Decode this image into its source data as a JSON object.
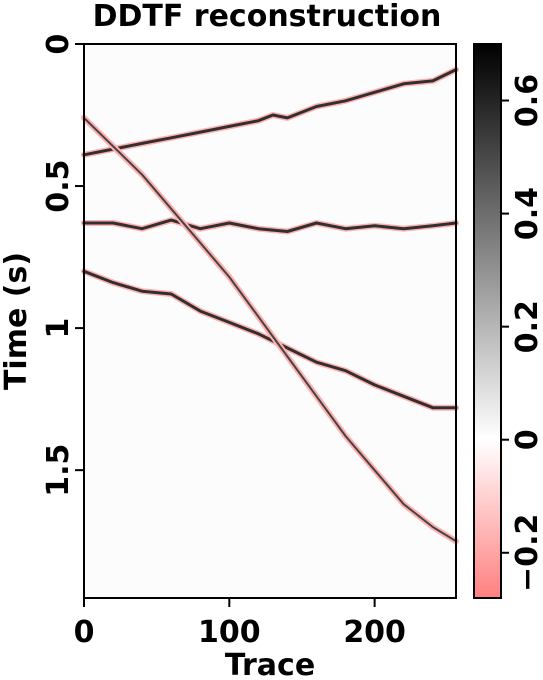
{
  "chart_data": {
    "type": "heatmap",
    "title": "DDTF reconstruction",
    "xlabel": "Trace",
    "ylabel": "Time (s)",
    "xlim": [
      0,
      256
    ],
    "ylim": [
      0,
      1.95
    ],
    "y_inverted": true,
    "xticks": [
      0,
      100,
      200
    ],
    "yticks": [
      0,
      0.5,
      1,
      1.5
    ],
    "xtick_labels": [
      "0",
      "100",
      "200"
    ],
    "ytick_labels": [
      "0",
      "0.5",
      "1",
      "1.5"
    ],
    "colorbar": {
      "range": [
        -0.28,
        0.7
      ],
      "ticks": [
        -0.2,
        0,
        0.2,
        0.4,
        0.6
      ],
      "tick_labels": [
        "−0.2",
        "0",
        "0.2",
        "0.4",
        "0.6"
      ],
      "colors": {
        "min": "#ff8080",
        "zero": "#ffffff",
        "max": "#000000"
      }
    },
    "events": [
      {
        "trace": [
          0,
          20,
          40,
          60,
          80,
          100,
          120,
          130,
          140,
          160,
          180,
          200,
          220,
          240,
          256
        ],
        "time": [
          0.39,
          0.37,
          0.35,
          0.33,
          0.31,
          0.29,
          0.27,
          0.25,
          0.26,
          0.22,
          0.2,
          0.17,
          0.14,
          0.13,
          0.09
        ]
      },
      {
        "trace": [
          0,
          20,
          40,
          60,
          80,
          100,
          120,
          140,
          160,
          180,
          200,
          220,
          240,
          256
        ],
        "time": [
          0.63,
          0.63,
          0.65,
          0.62,
          0.65,
          0.63,
          0.65,
          0.66,
          0.63,
          0.65,
          0.64,
          0.65,
          0.64,
          0.63
        ]
      },
      {
        "trace": [
          0,
          20,
          40,
          60,
          80,
          100,
          120,
          140,
          160,
          180,
          200,
          220,
          240,
          256
        ],
        "time": [
          0.8,
          0.84,
          0.87,
          0.88,
          0.94,
          0.98,
          1.02,
          1.07,
          1.12,
          1.15,
          1.2,
          1.24,
          1.28,
          1.28
        ]
      },
      {
        "trace": [
          0,
          20,
          40,
          60,
          80,
          100,
          120,
          140,
          160,
          180,
          200,
          220,
          240,
          256
        ],
        "time": [
          0.26,
          0.36,
          0.46,
          0.58,
          0.7,
          0.82,
          0.96,
          1.1,
          1.24,
          1.38,
          1.5,
          1.62,
          1.7,
          1.75
        ]
      }
    ]
  }
}
